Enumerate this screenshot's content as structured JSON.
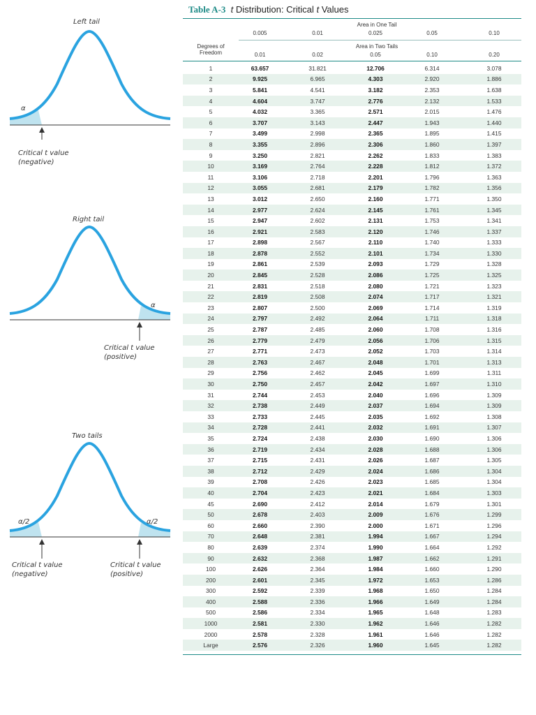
{
  "title": {
    "label": "Table A-3",
    "t_symbol": "t",
    "text": "Distribution: Critical",
    "t_symbol2": "t",
    "text2": "Values"
  },
  "header": {
    "one_tail_title": "Area in One Tail",
    "one_tail_values": [
      "0.005",
      "0.01",
      "0.025",
      "0.05",
      "0.10"
    ],
    "df_label_line1": "Degrees of",
    "df_label_line2": "Freedom",
    "two_tails_title": "Area in Two Tails",
    "two_tails_values": [
      "0.01",
      "0.02",
      "0.05",
      "0.10",
      "0.20"
    ]
  },
  "rows": [
    [
      "1",
      "63.657",
      "31.821",
      "12.706",
      "6.314",
      "3.078"
    ],
    [
      "2",
      "9.925",
      "6.965",
      "4.303",
      "2.920",
      "1.886"
    ],
    [
      "3",
      "5.841",
      "4.541",
      "3.182",
      "2.353",
      "1.638"
    ],
    [
      "4",
      "4.604",
      "3.747",
      "2.776",
      "2.132",
      "1.533"
    ],
    [
      "5",
      "4.032",
      "3.365",
      "2.571",
      "2.015",
      "1.476"
    ],
    [
      "6",
      "3.707",
      "3.143",
      "2.447",
      "1.943",
      "1.440"
    ],
    [
      "7",
      "3.499",
      "2.998",
      "2.365",
      "1.895",
      "1.415"
    ],
    [
      "8",
      "3.355",
      "2.896",
      "2.306",
      "1.860",
      "1.397"
    ],
    [
      "9",
      "3.250",
      "2.821",
      "2.262",
      "1.833",
      "1.383"
    ],
    [
      "10",
      "3.169",
      "2.764",
      "2.228",
      "1.812",
      "1.372"
    ],
    [
      "11",
      "3.106",
      "2.718",
      "2.201",
      "1.796",
      "1.363"
    ],
    [
      "12",
      "3.055",
      "2.681",
      "2.179",
      "1.782",
      "1.356"
    ],
    [
      "13",
      "3.012",
      "2.650",
      "2.160",
      "1.771",
      "1.350"
    ],
    [
      "14",
      "2.977",
      "2.624",
      "2.145",
      "1.761",
      "1.345"
    ],
    [
      "15",
      "2.947",
      "2.602",
      "2.131",
      "1.753",
      "1.341"
    ],
    [
      "16",
      "2.921",
      "2.583",
      "2.120",
      "1.746",
      "1.337"
    ],
    [
      "17",
      "2.898",
      "2.567",
      "2.110",
      "1.740",
      "1.333"
    ],
    [
      "18",
      "2.878",
      "2.552",
      "2.101",
      "1.734",
      "1.330"
    ],
    [
      "19",
      "2.861",
      "2.539",
      "2.093",
      "1.729",
      "1.328"
    ],
    [
      "20",
      "2.845",
      "2.528",
      "2.086",
      "1.725",
      "1.325"
    ],
    [
      "21",
      "2.831",
      "2.518",
      "2.080",
      "1.721",
      "1.323"
    ],
    [
      "22",
      "2.819",
      "2.508",
      "2.074",
      "1.717",
      "1.321"
    ],
    [
      "23",
      "2.807",
      "2.500",
      "2.069",
      "1.714",
      "1.319"
    ],
    [
      "24",
      "2.797",
      "2.492",
      "2.064",
      "1.711",
      "1.318"
    ],
    [
      "25",
      "2.787",
      "2.485",
      "2.060",
      "1.708",
      "1.316"
    ],
    [
      "26",
      "2.779",
      "2.479",
      "2.056",
      "1.706",
      "1.315"
    ],
    [
      "27",
      "2.771",
      "2.473",
      "2.052",
      "1.703",
      "1.314"
    ],
    [
      "28",
      "2.763",
      "2.467",
      "2.048",
      "1.701",
      "1.313"
    ],
    [
      "29",
      "2.756",
      "2.462",
      "2.045",
      "1.699",
      "1.311"
    ],
    [
      "30",
      "2.750",
      "2.457",
      "2.042",
      "1.697",
      "1.310"
    ],
    [
      "31",
      "2.744",
      "2.453",
      "2.040",
      "1.696",
      "1.309"
    ],
    [
      "32",
      "2.738",
      "2.449",
      "2.037",
      "1.694",
      "1.309"
    ],
    [
      "33",
      "2.733",
      "2.445",
      "2.035",
      "1.692",
      "1.308"
    ],
    [
      "34",
      "2.728",
      "2.441",
      "2.032",
      "1.691",
      "1.307"
    ],
    [
      "35",
      "2.724",
      "2.438",
      "2.030",
      "1.690",
      "1.306"
    ],
    [
      "36",
      "2.719",
      "2.434",
      "2.028",
      "1.688",
      "1.306"
    ],
    [
      "37",
      "2.715",
      "2.431",
      "2.026",
      "1.687",
      "1.305"
    ],
    [
      "38",
      "2.712",
      "2.429",
      "2.024",
      "1.686",
      "1.304"
    ],
    [
      "39",
      "2.708",
      "2.426",
      "2.023",
      "1.685",
      "1.304"
    ],
    [
      "40",
      "2.704",
      "2.423",
      "2.021",
      "1.684",
      "1.303"
    ],
    [
      "45",
      "2.690",
      "2.412",
      "2.014",
      "1.679",
      "1.301"
    ],
    [
      "50",
      "2.678",
      "2.403",
      "2.009",
      "1.676",
      "1.299"
    ],
    [
      "60",
      "2.660",
      "2.390",
      "2.000",
      "1.671",
      "1.296"
    ],
    [
      "70",
      "2.648",
      "2.381",
      "1.994",
      "1.667",
      "1.294"
    ],
    [
      "80",
      "2.639",
      "2.374",
      "1.990",
      "1.664",
      "1.292"
    ],
    [
      "90",
      "2.632",
      "2.368",
      "1.987",
      "1.662",
      "1.291"
    ],
    [
      "100",
      "2.626",
      "2.364",
      "1.984",
      "1.660",
      "1.290"
    ],
    [
      "200",
      "2.601",
      "2.345",
      "1.972",
      "1.653",
      "1.286"
    ],
    [
      "300",
      "2.592",
      "2.339",
      "1.968",
      "1.650",
      "1.284"
    ],
    [
      "400",
      "2.588",
      "2.336",
      "1.966",
      "1.649",
      "1.284"
    ],
    [
      "500",
      "2.586",
      "2.334",
      "1.965",
      "1.648",
      "1.283"
    ],
    [
      "1000",
      "2.581",
      "2.330",
      "1.962",
      "1.646",
      "1.282"
    ],
    [
      "2000",
      "2.578",
      "2.328",
      "1.961",
      "1.646",
      "1.282"
    ],
    [
      "Large",
      "2.576",
      "2.326",
      "1.960",
      "1.645",
      "1.282"
    ]
  ],
  "diagrams": {
    "left": {
      "title": "Left tail",
      "alpha": "α",
      "caption_line1": "Critical t value",
      "caption_line2": "(negative)"
    },
    "right": {
      "title": "Right tail",
      "alpha": "α",
      "caption_line1": "Critical t value",
      "caption_line2": "(positive)"
    },
    "two": {
      "title": "Two tails",
      "alpha_left": "α/2",
      "alpha_right": "α/2",
      "caption_left_line1": "Critical t value",
      "caption_left_line2": "(negative)",
      "caption_right_line1": "Critical t value",
      "caption_right_line2": "(positive)"
    }
  },
  "colors": {
    "accent": "#1c8a86",
    "curve": "#2aa3e0",
    "shade": "#bfe3ef",
    "stripe": "#e7f2ec"
  }
}
